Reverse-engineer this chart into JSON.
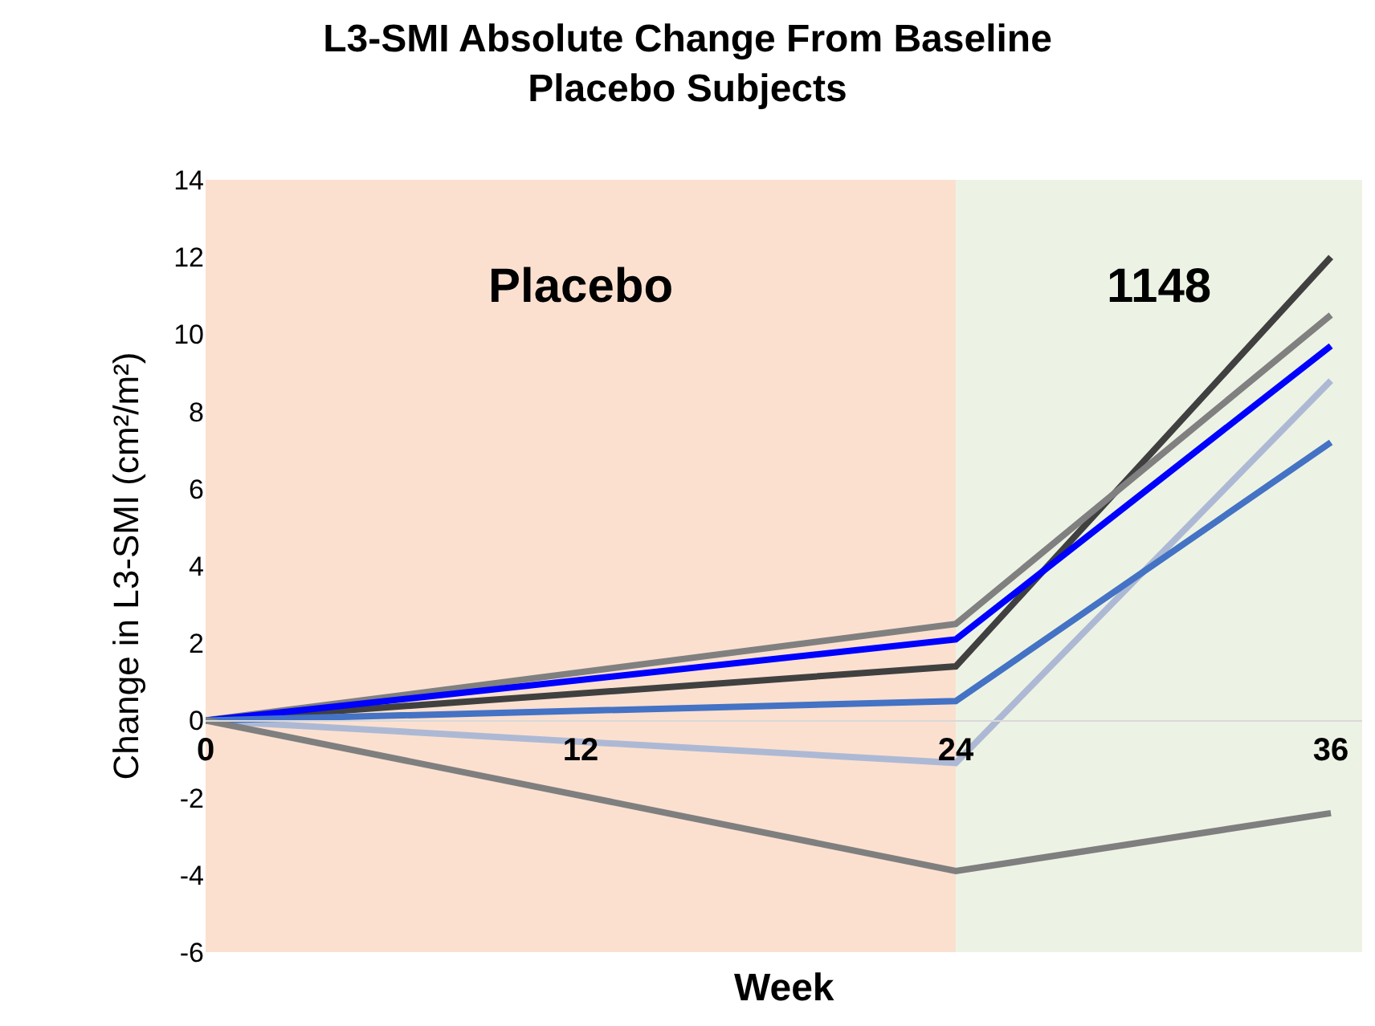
{
  "chart_data": {
    "type": "line",
    "title": "L3-SMI Absolute Change From Baseline\nPlacebo Subjects",
    "xlabel": "Week",
    "ylabel": "Change in L3-SMI (cm²/m²)",
    "x": [
      0,
      24,
      36
    ],
    "series": [
      {
        "color": "#404040",
        "values": [
          0,
          1.4,
          12.0
        ]
      },
      {
        "color": "#808080",
        "values": [
          0,
          2.5,
          10.5
        ]
      },
      {
        "color": "#0000ff",
        "values": [
          0,
          2.1,
          9.7
        ]
      },
      {
        "color": "#adb9d4",
        "values": [
          0,
          -1.1,
          8.8
        ]
      },
      {
        "color": "#4472c4",
        "values": [
          0,
          0.5,
          7.2
        ]
      },
      {
        "color": "#7f7f7f",
        "values": [
          0,
          -3.9,
          -2.4
        ]
      }
    ],
    "xlim": [
      0,
      37
    ],
    "xticks": [
      0,
      12,
      24,
      36
    ],
    "ylim": [
      -6,
      14
    ],
    "yticks": [
      -6,
      -4,
      -2,
      0,
      2,
      4,
      6,
      8,
      10,
      12,
      14
    ],
    "bands": [
      {
        "axis": "x",
        "from": 0,
        "to": 24,
        "label": "Placebo",
        "color": "#fbe0d0"
      },
      {
        "axis": "x",
        "from": 24,
        "to": 37,
        "label": "1148",
        "color": "#edf3e4"
      }
    ],
    "grid": false,
    "marker": "none",
    "line_style": "solid"
  }
}
